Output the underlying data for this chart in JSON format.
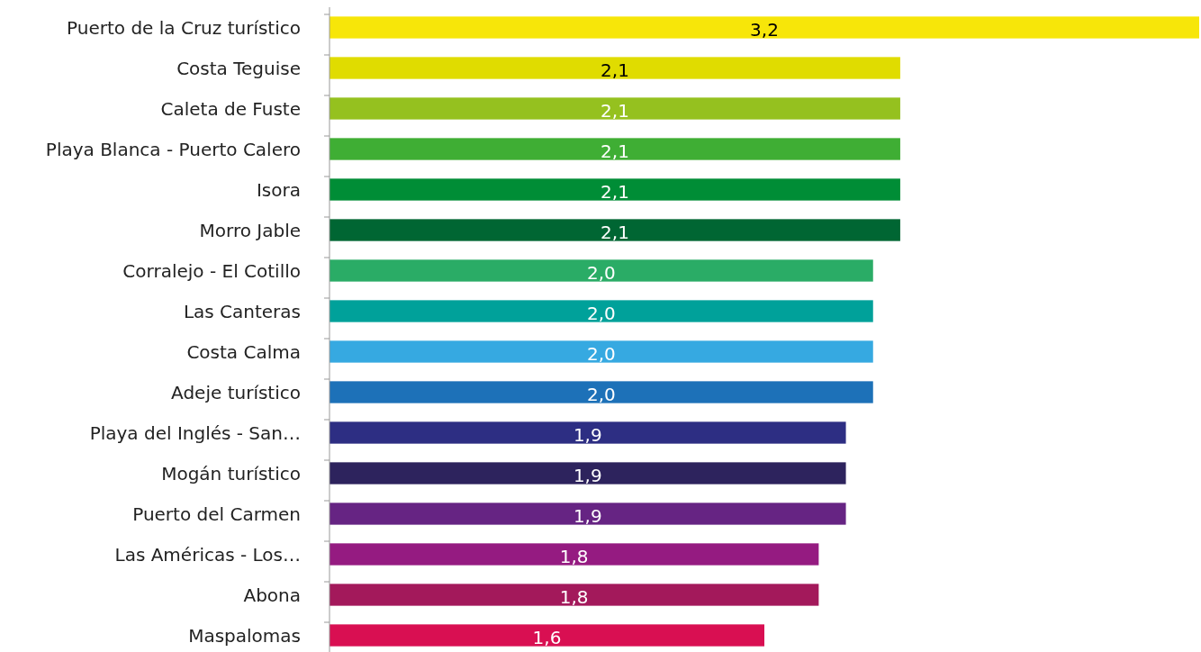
{
  "chart_data": {
    "type": "bar",
    "orientation": "horizontal",
    "value_labels": [
      "3,2",
      "2,1",
      "2,1",
      "2,1",
      "2,1",
      "2,1",
      "2,0",
      "2,0",
      "2,0",
      "2,0",
      "1,9",
      "1,9",
      "1,9",
      "1,8",
      "1,8",
      "1,6"
    ],
    "categories": [
      "Puerto de la Cruz turístico",
      "Costa Teguise",
      "Caleta de Fuste",
      "Playa Blanca - Puerto Calero",
      "Isora",
      "Morro Jable",
      "Corralejo - El Cotillo",
      "Las Canteras",
      "Costa Calma",
      "Adeje turístico",
      "Playa del Inglés - San…",
      "Mogán turístico",
      "Puerto del Carmen",
      "Las Américas - Los…",
      "Abona",
      "Maspalomas"
    ],
    "values": [
      3.2,
      2.1,
      2.1,
      2.1,
      2.1,
      2.1,
      2.0,
      2.0,
      2.0,
      2.0,
      1.9,
      1.9,
      1.9,
      1.8,
      1.8,
      1.6
    ],
    "colors": [
      "#f7e609",
      "#e0dc00",
      "#95c11f",
      "#3fae34",
      "#008d36",
      "#006633",
      "#2aac66",
      "#00a19a",
      "#36a9e1",
      "#1d71b8",
      "#2d2e83",
      "#2d235d",
      "#662483",
      "#951b81",
      "#a3195b",
      "#d90f52"
    ]
  }
}
